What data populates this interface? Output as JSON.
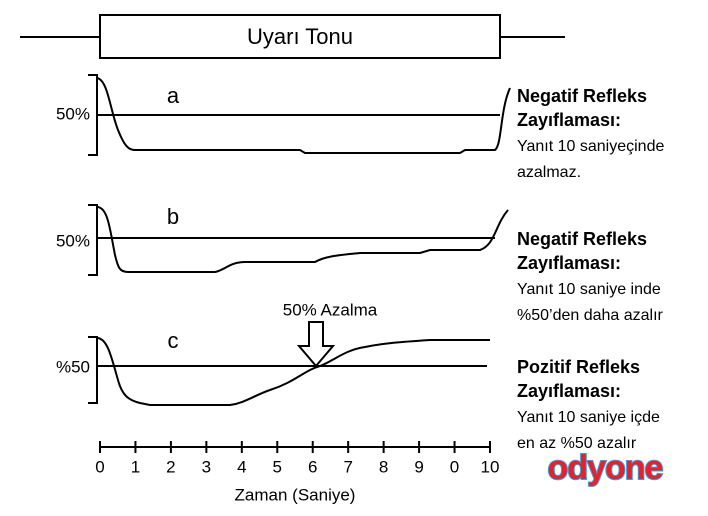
{
  "tone": "Uyarı Tonu",
  "panels": [
    {
      "letter": "a",
      "level": "50%",
      "title": [
        "Negatif Refleks",
        "Zayıflaması:"
      ],
      "desc": [
        "Yanıt 10 saniyeçinde",
        "azalmaz."
      ]
    },
    {
      "letter": "b",
      "level": "50%",
      "title": [
        "Negatif Refleks",
        "Zayıflaması:"
      ],
      "desc": [
        "Yanıt 10 saniye inde",
        "%50’den daha azalır"
      ]
    },
    {
      "letter": "c",
      "level": "%50",
      "title": [
        "Pozitif Refleks",
        "Zayıflaması:"
      ],
      "desc": [
        "Yanıt 10 saniye içde",
        "en az %50 azalır"
      ]
    }
  ],
  "annotation": "50% Azalma",
  "axis": {
    "ticks": [
      "0",
      "1",
      "2",
      "3",
      "4",
      "5",
      "6",
      "7",
      "8",
      "9",
      "0",
      "10"
    ],
    "label": "Zaman (Saniye)"
  },
  "logo": "odyone"
}
